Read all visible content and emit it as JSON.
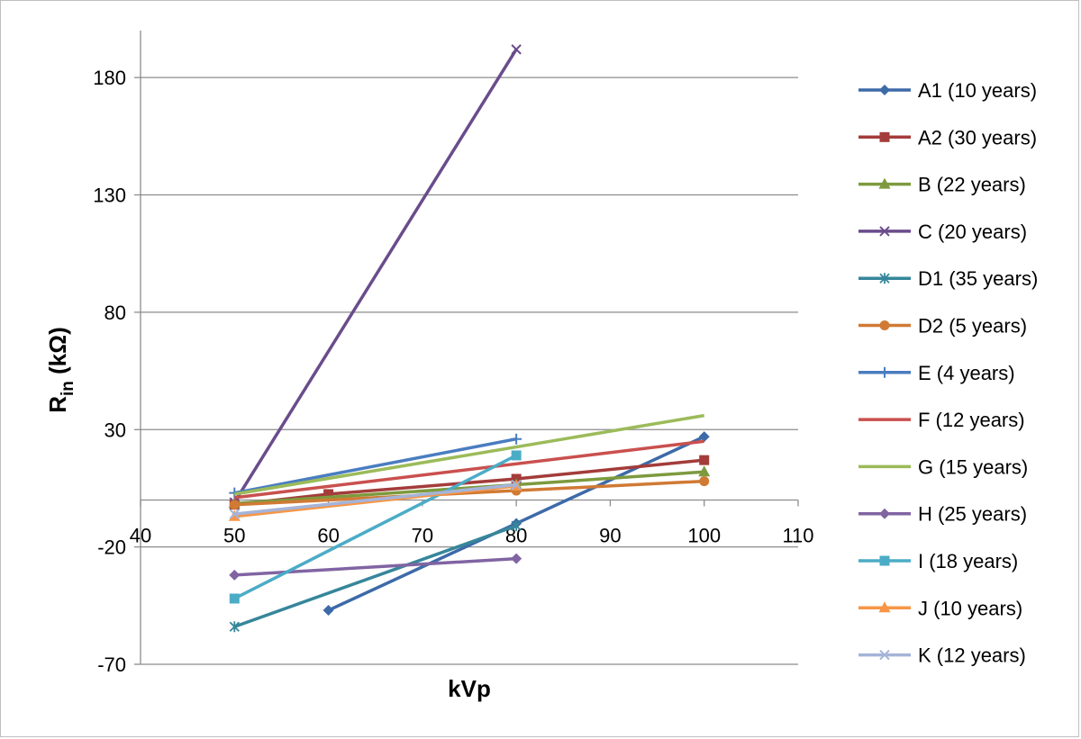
{
  "chart_data": {
    "type": "line",
    "title": "",
    "xlabel": "kVp",
    "ylabel_main": "R",
    "ylabel_sub": "in",
    "ylabel_unit": " (kΩ)",
    "xlim": [
      40,
      110
    ],
    "ylim": [
      -70,
      200
    ],
    "xticks": [
      40,
      50,
      60,
      70,
      80,
      90,
      100,
      110
    ],
    "yticks": [
      -70,
      -20,
      30,
      80,
      130,
      180
    ],
    "grid": true,
    "legend_position": "right",
    "series": [
      {
        "name": "A1 (10 years)",
        "color": "#3d6aa8",
        "marker": "diamond",
        "x": [
          60,
          80,
          100
        ],
        "y": [
          -47,
          -10,
          27
        ]
      },
      {
        "name": "A2 (30 years)",
        "color": "#a33c3a",
        "marker": "square",
        "x": [
          50,
          60,
          80,
          100
        ],
        "y": [
          -2,
          2.5,
          9,
          17
        ]
      },
      {
        "name": "B (22 years)",
        "color": "#7d9a3e",
        "marker": "triangle",
        "x": [
          50,
          80,
          100
        ],
        "y": [
          -1.5,
          6.5,
          12
        ]
      },
      {
        "name": "C (20 years)",
        "color": "#6a4c8c",
        "marker": "x",
        "x": [
          50,
          80
        ],
        "y": [
          -1,
          192
        ]
      },
      {
        "name": "D1 (35 years)",
        "color": "#36869a",
        "marker": "asterisk",
        "x": [
          50,
          80
        ],
        "y": [
          -54,
          -11
        ]
      },
      {
        "name": "D2 (5 years)",
        "color": "#d07a34",
        "marker": "circle",
        "x": [
          50,
          80,
          100
        ],
        "y": [
          -2,
          4,
          8
        ]
      },
      {
        "name": "E (4 years)",
        "color": "#4a7dc0",
        "marker": "plus",
        "x": [
          50,
          80
        ],
        "y": [
          3,
          26
        ]
      },
      {
        "name": "F (12 years)",
        "color": "#c9504e",
        "marker": "none",
        "x": [
          50,
          100
        ],
        "y": [
          1,
          25
        ]
      },
      {
        "name": "G (15 years)",
        "color": "#9bbb59",
        "marker": "none",
        "x": [
          50,
          100
        ],
        "y": [
          2.5,
          36
        ]
      },
      {
        "name": "H (25 years)",
        "color": "#8064a2",
        "marker": "diamond",
        "x": [
          50,
          80
        ],
        "y": [
          -32,
          -25
        ]
      },
      {
        "name": "I (18 years)",
        "color": "#4bacc6",
        "marker": "square",
        "x": [
          50,
          80
        ],
        "y": [
          -42,
          19
        ]
      },
      {
        "name": "J (10 years)",
        "color": "#f79646",
        "marker": "triangle",
        "x": [
          50,
          80
        ],
        "y": [
          -7,
          6
        ]
      },
      {
        "name": "K (12 years)",
        "color": "#a5b4d8",
        "marker": "x",
        "x": [
          50,
          80
        ],
        "y": [
          -6,
          6.5
        ]
      }
    ]
  }
}
